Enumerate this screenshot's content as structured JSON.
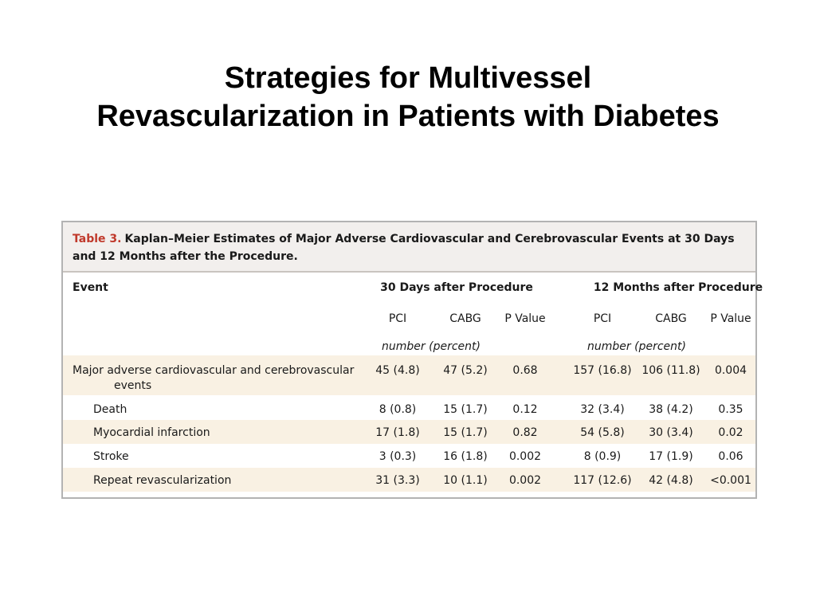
{
  "slide": {
    "title_line1": "Strategies for Multivessel",
    "title_line2": "Revascularization in Patients with Diabetes"
  },
  "table": {
    "caption_label": "Table 3.",
    "caption_text": "Kaplan–Meier Estimates of Major Adverse Cardiovascular and Cerebrovascular Events at 30 Days and 12 Months after the Procedure.",
    "event_header": "Event",
    "group_30": "30 Days after Procedure",
    "group_12": "12 Months after Procedure",
    "col_pci": "PCI",
    "col_cabg": "CABG",
    "col_p": "P Value",
    "units": "number (percent)",
    "rows": [
      {
        "event_line1": "Major adverse cardiovascular and cerebrovascular",
        "event_line2": "events",
        "pci30": "45 (4.8)",
        "cabg30": "47 (5.2)",
        "p30": "0.68",
        "pci12": "157 (16.8)",
        "cabg12": "106 (11.8)",
        "p12": "0.004"
      },
      {
        "event_line1": "Death",
        "pci30": "8 (0.8)",
        "cabg30": "15 (1.7)",
        "p30": "0.12",
        "pci12": "32 (3.4)",
        "cabg12": "38 (4.2)",
        "p12": "0.35"
      },
      {
        "event_line1": "Myocardial infarction",
        "pci30": "17 (1.8)",
        "cabg30": "15 (1.7)",
        "p30": "0.82",
        "pci12": "54 (5.8)",
        "cabg12": "30 (3.4)",
        "p12": "0.02"
      },
      {
        "event_line1": "Stroke",
        "pci30": "3 (0.3)",
        "cabg30": "16 (1.8)",
        "p30": "0.002",
        "pci12": "8 (0.9)",
        "cabg12": "17 (1.9)",
        "p12": "0.06"
      },
      {
        "event_line1": "Repeat revascularization",
        "pci30": "31 (3.3)",
        "cabg30": "10 (1.1)",
        "p30": "0.002",
        "pci12": "117 (12.6)",
        "cabg12": "42 (4.8)",
        "p12": "<0.001"
      }
    ]
  }
}
